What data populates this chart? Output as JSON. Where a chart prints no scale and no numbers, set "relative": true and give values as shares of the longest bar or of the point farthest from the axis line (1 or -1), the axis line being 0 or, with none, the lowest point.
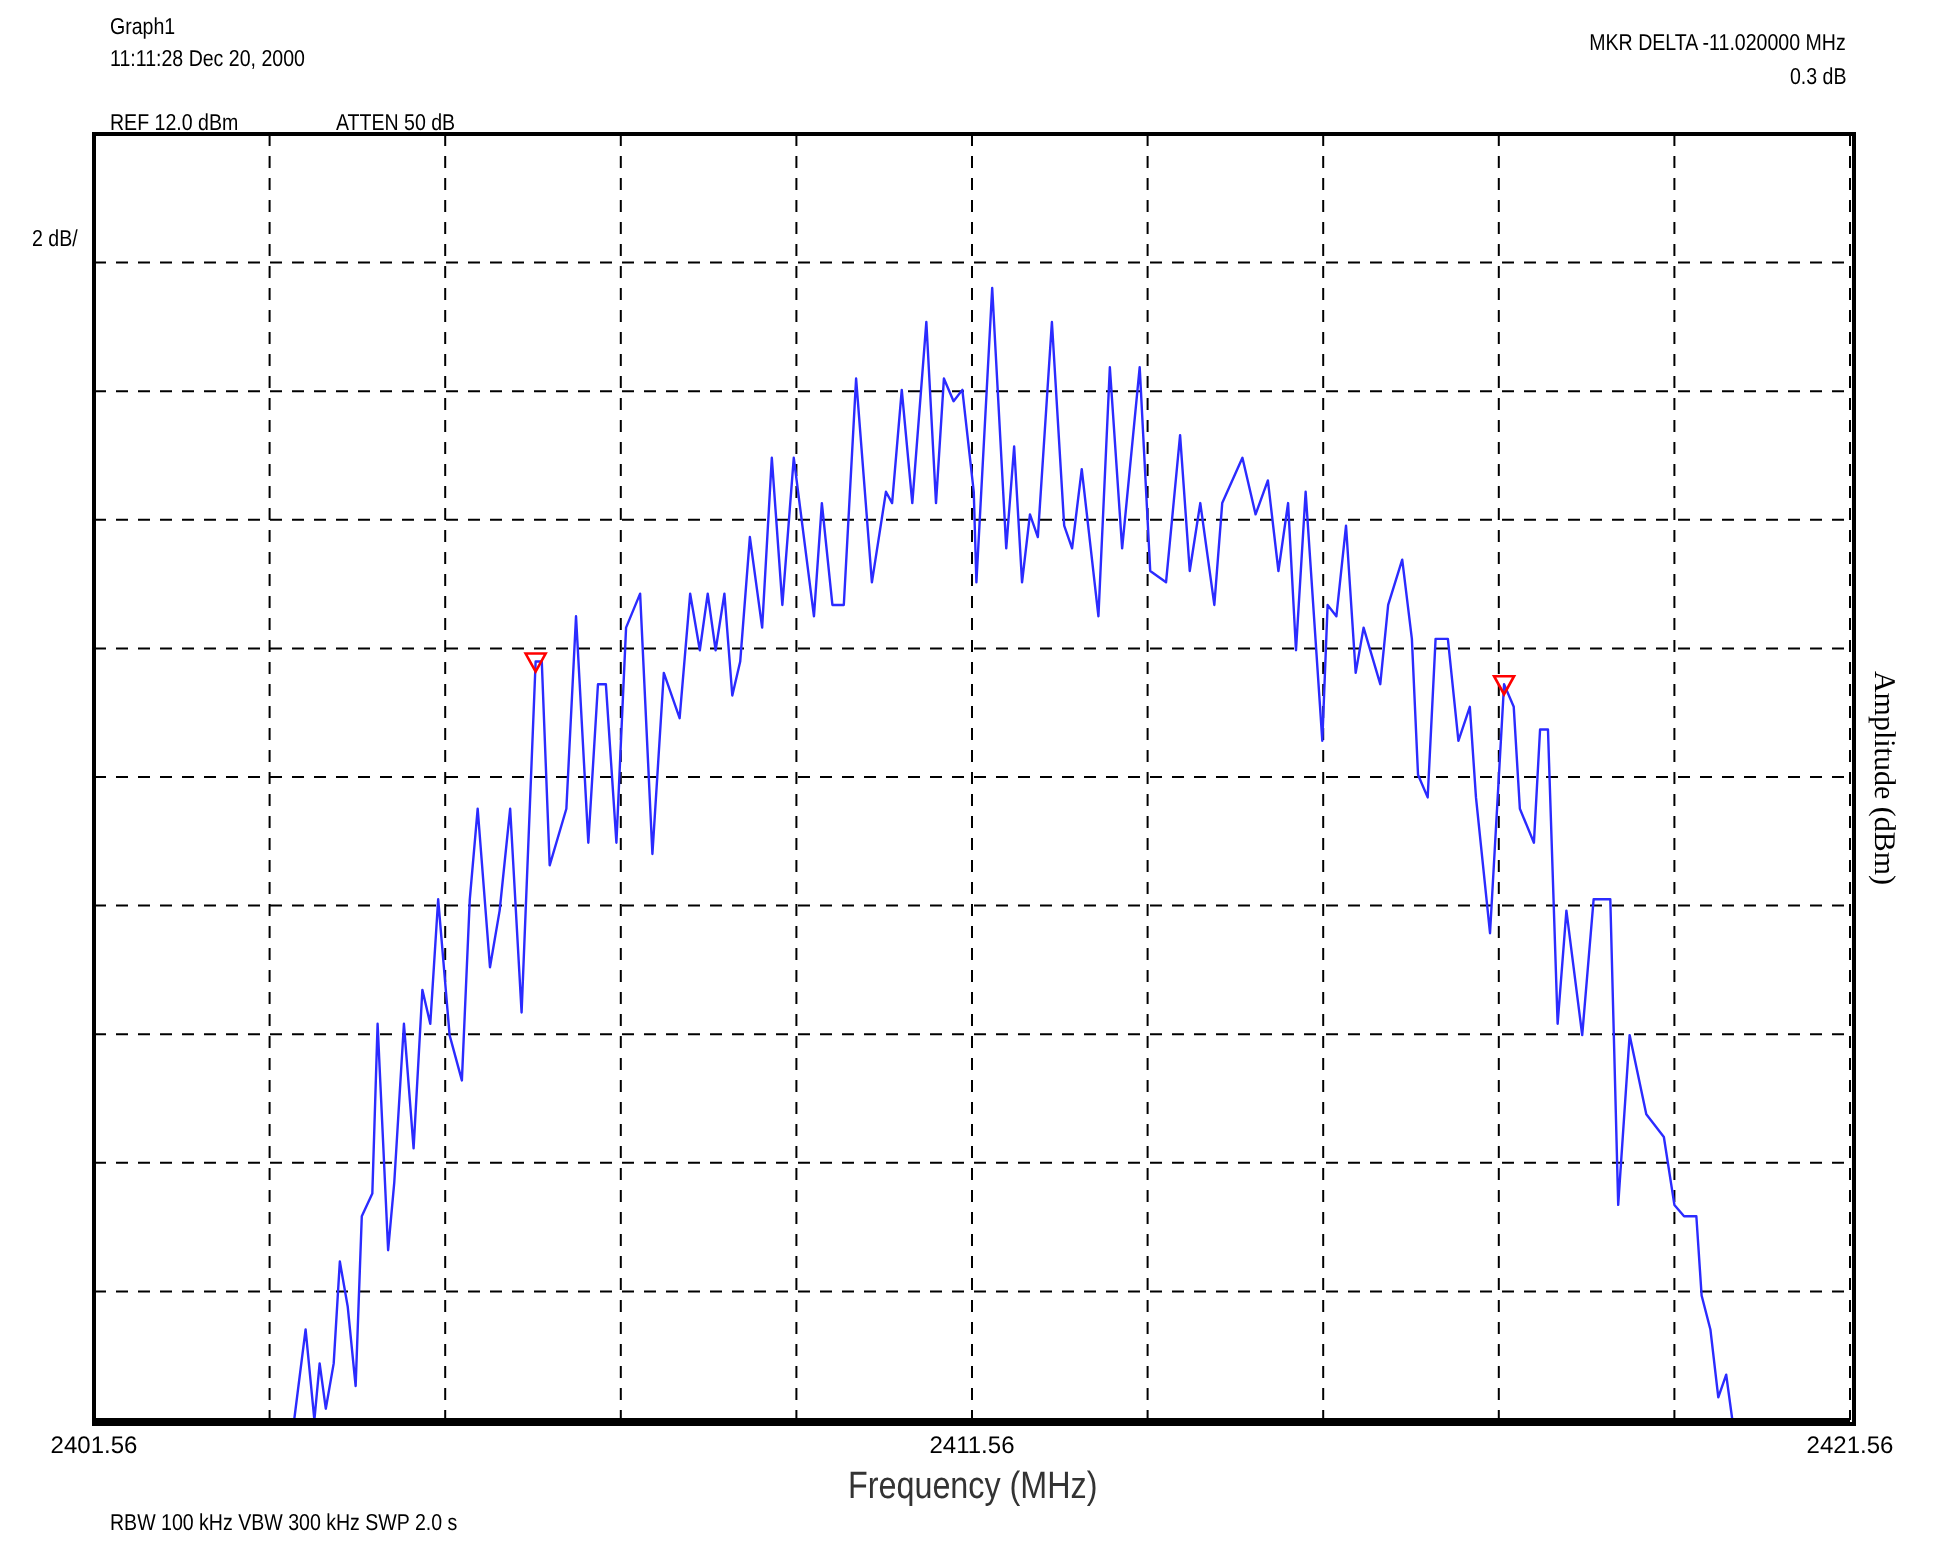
{
  "chart_data": {
    "type": "line",
    "title": "Graph1",
    "subtitle": "11:11:28 Dec 20, 2000",
    "xlabel": "Frequency (MHz)",
    "ylabel": "Amplitude (dBm)",
    "relative": true,
    "grid": true,
    "legend": false,
    "line_style": "solid",
    "annotations": [
      "REF 12.0 dBm",
      "ATTEN 50 dB",
      "MKR DELTA -11.020000 MHz",
      "0.3 dB",
      "2 dB/",
      "RBW 100 kHz  VBW 300 kHz   SWP 2.0 s"
    ],
    "xlim": [
      2401.56,
      2421.56
    ],
    "xticks": [
      2401.56,
      {
        "value": 2403.56,
        "label": null
      },
      {
        "value": 2405.56,
        "label": null
      },
      {
        "value": 2407.56,
        "label": null
      },
      {
        "value": 2409.56,
        "label": null
      },
      2411.56,
      {
        "value": 2413.56,
        "label": null
      },
      {
        "value": 2415.56,
        "label": null
      },
      {
        "value": 2417.56,
        "label": null
      },
      {
        "value": 2419.56,
        "label": null
      },
      2421.56
    ],
    "series": [
      {
        "color": "#2b2bff",
        "marker": "none",
        "x": [
          2401.56,
          2403.84,
          2403.97,
          2404.07,
          2404.13,
          2404.2,
          2404.29,
          2404.36,
          2404.45,
          2404.54,
          2404.61,
          2404.73,
          2404.79,
          2404.91,
          2404.98,
          2405.09,
          2405.2,
          2405.3,
          2405.39,
          2405.48,
          2405.61,
          2405.75,
          2405.84,
          2405.93,
          2406.07,
          2406.18,
          2406.3,
          2406.43,
          2406.59,
          2406.66,
          2406.75,
          2406.94,
          2407.05,
          2407.19,
          2407.3,
          2407.39,
          2407.51,
          2407.62,
          2407.78,
          2407.92,
          2408.05,
          2408.23,
          2408.35,
          2408.46,
          2408.55,
          2408.64,
          2408.74,
          2408.83,
          2408.92,
          2409.03,
          2409.17,
          2409.28,
          2409.4,
          2409.53,
          2409.76,
          2409.85,
          2409.97,
          2410.1,
          2410.24,
          2410.42,
          2410.58,
          2410.65,
          2410.76,
          2410.88,
          2411.04,
          2411.15,
          2411.24,
          2411.35,
          2411.45,
          2411.58,
          2411.61,
          2411.79,
          2411.95,
          2412.04,
          2412.13,
          2412.22,
          2412.31,
          2412.47,
          2412.61,
          2412.7,
          2412.81,
          2413.0,
          2413.13,
          2413.27,
          2413.47,
          2413.59,
          2413.77,
          2413.93,
          2414.04,
          2414.16,
          2414.32,
          2414.41,
          2414.64,
          2414.79,
          2414.93,
          2415.05,
          2415.16,
          2415.25,
          2415.36,
          2415.55,
          2415.61,
          2415.71,
          2415.82,
          2415.93,
          2416.02,
          2416.21,
          2416.3,
          2416.46,
          2416.57,
          2416.64,
          2416.75,
          2416.84,
          2416.98,
          2417.1,
          2417.23,
          2417.3,
          2417.46,
          2417.62,
          2417.73,
          2417.8,
          2417.96,
          2418.03,
          2418.12,
          2418.23,
          2418.33,
          2418.51,
          2418.64,
          2418.83,
          2418.92,
          2419.05,
          2419.24,
          2419.44,
          2419.56,
          2419.67,
          2419.81,
          2419.87,
          2419.97,
          2420.06,
          2420.15,
          2420.22,
          2421.56
        ],
        "values": [
          0,
          0,
          0.08,
          0,
          0.05,
          0.01,
          0.05,
          0.14,
          0.1,
          0.03,
          0.18,
          0.2,
          0.35,
          0.15,
          0.21,
          0.35,
          0.24,
          0.38,
          0.35,
          0.46,
          0.34,
          0.3,
          0.46,
          0.54,
          0.4,
          0.45,
          0.54,
          0.36,
          0.67,
          0.67,
          0.49,
          0.54,
          0.71,
          0.51,
          0.65,
          0.65,
          0.51,
          0.7,
          0.73,
          0.5,
          0.66,
          0.62,
          0.73,
          0.68,
          0.73,
          0.68,
          0.73,
          0.64,
          0.67,
          0.78,
          0.7,
          0.85,
          0.72,
          0.85,
          0.71,
          0.81,
          0.72,
          0.72,
          0.92,
          0.74,
          0.82,
          0.81,
          0.91,
          0.81,
          0.97,
          0.81,
          0.92,
          0.9,
          0.91,
          0.82,
          0.74,
          1,
          0.77,
          0.86,
          0.74,
          0.8,
          0.78,
          0.97,
          0.79,
          0.77,
          0.84,
          0.71,
          0.93,
          0.77,
          0.93,
          0.75,
          0.74,
          0.87,
          0.75,
          0.81,
          0.72,
          0.81,
          0.85,
          0.8,
          0.83,
          0.75,
          0.81,
          0.68,
          0.82,
          0.6,
          0.72,
          0.71,
          0.79,
          0.66,
          0.7,
          0.65,
          0.72,
          0.76,
          0.69,
          0.57,
          0.55,
          0.69,
          0.69,
          0.6,
          0.63,
          0.55,
          0.43,
          0.65,
          0.63,
          0.54,
          0.51,
          0.61,
          0.61,
          0.35,
          0.45,
          0.34,
          0.46,
          0.46,
          0.19,
          0.34,
          0.27,
          0.25,
          0.19,
          0.18,
          0.18,
          0.11,
          0.08,
          0.02,
          0.04,
          0,
          0
        ]
      },
      {
        "type": "scatter",
        "color": "#ff0000",
        "marker": "triangle",
        "x": [
          2406.59,
          2417.62
        ],
        "values": [
          0.67,
          0.65
        ]
      }
    ]
  }
}
